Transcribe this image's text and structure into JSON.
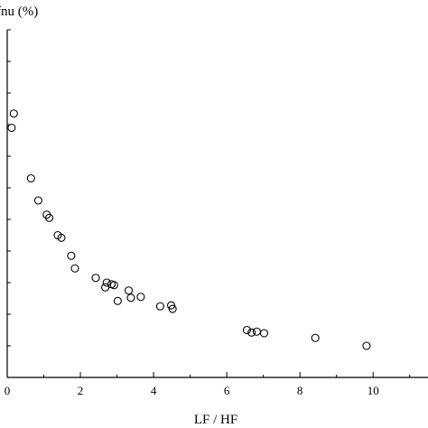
{
  "chart_data": {
    "type": "scatter",
    "title": "",
    "xlabel": "LF / HF",
    "ylabel": "fnu (%)",
    "xlim": [
      0,
      11.5
    ],
    "ylim": [
      0,
      11
    ],
    "x_ticks": [
      0,
      2,
      4,
      6,
      8,
      10
    ],
    "x_tick_labels": [
      "0",
      "2",
      "4",
      "6",
      "8",
      "10"
    ],
    "y_minor_ticks": [
      1,
      2,
      3,
      4,
      5,
      6,
      7,
      8,
      9,
      10,
      11
    ],
    "grid": false,
    "marker": "open-circle",
    "colors": {
      "marker": "#000000",
      "axis": "#000000"
    },
    "series": [
      {
        "x": [
          0.12,
          0.18,
          0.65,
          0.85,
          1.08,
          1.15,
          1.38,
          1.48,
          1.75,
          1.85,
          2.42,
          2.68,
          2.72,
          2.85,
          2.92,
          3.02,
          3.32,
          3.38,
          3.65,
          4.18,
          4.48,
          4.52,
          6.55,
          6.68,
          6.82,
          7.02,
          8.42,
          9.82
        ],
        "y": [
          7.9,
          8.35,
          6.3,
          5.6,
          5.15,
          5.05,
          4.5,
          4.42,
          3.85,
          3.45,
          3.15,
          2.85,
          3.0,
          2.95,
          2.92,
          2.42,
          2.75,
          2.52,
          2.55,
          2.25,
          2.28,
          2.17,
          1.5,
          1.42,
          1.45,
          1.4,
          1.25,
          1.0
        ]
      }
    ]
  }
}
